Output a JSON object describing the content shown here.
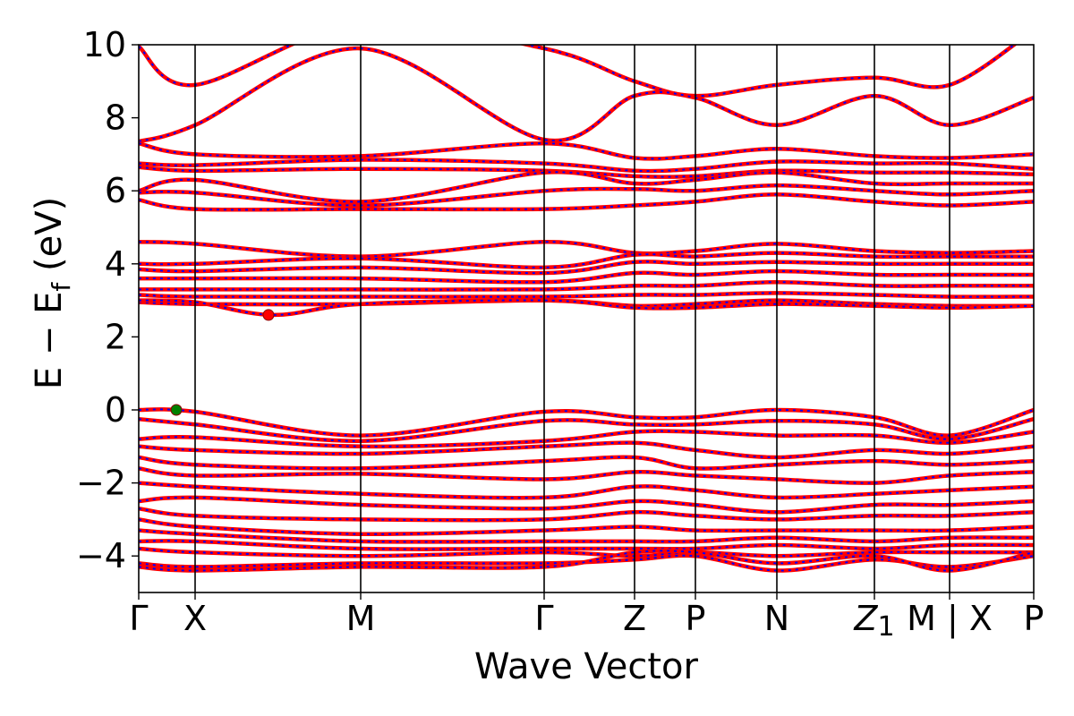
{
  "chart_data": {
    "type": "line",
    "xlabel": "Wave Vector",
    "ylabel": "E − E_f (eV)",
    "ylabel_parts": {
      "main": "E − E",
      "sub": "f",
      "unit": " (eV)"
    },
    "ylim": [
      -5,
      10
    ],
    "yticks": [
      -4,
      -2,
      0,
      2,
      4,
      6,
      8,
      10
    ],
    "ytick_labels": [
      "−4",
      "−2",
      "0",
      "2",
      "4",
      "6",
      "8",
      "10"
    ],
    "xlim": [
      0,
      1
    ],
    "high_symmetry_points": [
      {
        "label": "Γ",
        "x": 0.0
      },
      {
        "label": "X",
        "x": 0.063
      },
      {
        "label": "M",
        "x": 0.248
      },
      {
        "label": "Γ",
        "x": 0.453
      },
      {
        "label": "Z",
        "x": 0.554
      },
      {
        "label": "P",
        "x": 0.622
      },
      {
        "label": "N",
        "x": 0.713
      },
      {
        "label": "Z",
        "label_sub": "1",
        "x": 0.822
      },
      {
        "label": "M | X",
        "x": 0.906
      },
      {
        "label": "P",
        "x": 1.0
      }
    ],
    "series_colors": {
      "band": "#ff0000",
      "dash": "#0000ff"
    },
    "bands": [
      {
        "x": [
          0,
          0.063,
          0.248,
          0.453,
          0.554,
          0.622,
          0.713,
          0.822,
          0.906,
          1.0
        ],
        "y": [
          9.95,
          8.9,
          10.6,
          9.9,
          9.0,
          8.6,
          8.9,
          9.1,
          8.9,
          10.4
        ]
      },
      {
        "x": [
          0,
          0.063,
          0.248,
          0.453,
          0.554,
          0.622,
          0.713,
          0.822,
          0.906,
          1.0
        ],
        "y": [
          7.35,
          7.8,
          9.9,
          7.4,
          8.6,
          8.55,
          7.8,
          8.6,
          7.8,
          8.55
        ]
      },
      {
        "x": [
          0,
          0.063,
          0.248,
          0.453,
          0.554,
          0.622,
          0.713,
          0.822,
          0.906,
          1.0
        ],
        "y": [
          7.3,
          7.0,
          6.95,
          7.3,
          6.9,
          6.95,
          7.15,
          6.95,
          6.9,
          7.0
        ]
      },
      {
        "x": [
          0,
          0.063,
          0.248,
          0.453,
          0.554,
          0.622,
          0.713,
          0.822,
          0.906,
          1.0
        ],
        "y": [
          6.75,
          6.7,
          6.85,
          6.75,
          6.55,
          6.6,
          6.8,
          6.75,
          6.75,
          6.6
        ]
      },
      {
        "x": [
          0,
          0.063,
          0.248,
          0.453,
          0.554,
          0.622,
          0.713,
          0.822,
          0.906,
          1.0
        ],
        "y": [
          6.65,
          6.55,
          6.6,
          6.55,
          6.4,
          6.4,
          6.55,
          6.5,
          6.5,
          6.45
        ]
      },
      {
        "x": [
          0,
          0.063,
          0.248,
          0.453,
          0.554,
          0.622,
          0.713,
          0.822,
          0.906,
          1.0
        ],
        "y": [
          6.0,
          6.3,
          5.7,
          6.5,
          6.2,
          6.3,
          6.5,
          6.2,
          6.2,
          6.2
        ]
      },
      {
        "x": [
          0,
          0.063,
          0.248,
          0.453,
          0.554,
          0.622,
          0.713,
          0.822,
          0.906,
          1.0
        ],
        "y": [
          5.95,
          5.95,
          5.6,
          6.0,
          6.05,
          6.0,
          6.15,
          6.0,
          5.9,
          6.0
        ]
      },
      {
        "x": [
          0,
          0.063,
          0.248,
          0.453,
          0.554,
          0.622,
          0.713,
          0.822,
          0.906,
          1.0
        ],
        "y": [
          5.75,
          5.5,
          5.5,
          5.5,
          5.6,
          5.7,
          5.9,
          5.7,
          5.6,
          5.7
        ]
      },
      {
        "x": [
          0,
          0.063,
          0.248,
          0.453,
          0.554,
          0.622,
          0.713,
          0.822,
          0.906,
          1.0
        ],
        "y": [
          4.6,
          4.55,
          4.2,
          4.6,
          4.3,
          4.35,
          4.55,
          4.35,
          4.3,
          4.35
        ]
      },
      {
        "x": [
          0,
          0.063,
          0.248,
          0.453,
          0.554,
          0.622,
          0.713,
          0.822,
          0.906,
          1.0
        ],
        "y": [
          4.0,
          4.0,
          4.15,
          3.9,
          4.25,
          4.2,
          4.3,
          4.2,
          4.2,
          4.2
        ]
      },
      {
        "x": [
          0,
          0.063,
          0.248,
          0.453,
          0.554,
          0.622,
          0.713,
          0.822,
          0.906,
          1.0
        ],
        "y": [
          3.85,
          3.8,
          3.9,
          3.75,
          4.05,
          4.0,
          4.05,
          4.0,
          4.0,
          4.0
        ]
      },
      {
        "x": [
          0,
          0.063,
          0.248,
          0.453,
          0.554,
          0.622,
          0.713,
          0.822,
          0.906,
          1.0
        ],
        "y": [
          3.6,
          3.6,
          3.6,
          3.5,
          3.75,
          3.7,
          3.8,
          3.7,
          3.7,
          3.7
        ]
      },
      {
        "x": [
          0,
          0.063,
          0.248,
          0.453,
          0.554,
          0.622,
          0.713,
          0.822,
          0.906,
          1.0
        ],
        "y": [
          3.3,
          3.3,
          3.3,
          3.3,
          3.4,
          3.4,
          3.5,
          3.4,
          3.4,
          3.4
        ]
      },
      {
        "x": [
          0,
          0.063,
          0.248,
          0.453,
          0.554,
          0.622,
          0.713,
          0.822,
          0.906,
          1.0
        ],
        "y": [
          3.15,
          3.1,
          3.1,
          3.1,
          3.15,
          3.15,
          3.2,
          3.15,
          3.1,
          3.1
        ]
      },
      {
        "x": [
          0,
          0.063,
          0.248,
          0.453,
          0.554,
          0.622,
          0.713,
          0.822,
          0.906,
          1.0
        ],
        "y": [
          2.95,
          2.9,
          2.9,
          3.0,
          2.85,
          2.9,
          3.0,
          2.9,
          2.85,
          2.85
        ]
      },
      {
        "x": [
          0,
          0.063,
          0.15,
          0.248,
          0.453,
          0.554,
          0.622,
          0.713,
          0.822,
          0.906,
          1.0
        ],
        "y": [
          3.0,
          2.95,
          2.6,
          2.9,
          3.0,
          2.8,
          2.8,
          2.9,
          2.85,
          2.8,
          2.85
        ]
      },
      {
        "x": [
          0,
          0.063,
          0.248,
          0.453,
          0.554,
          0.622,
          0.713,
          0.822,
          0.906,
          1.0
        ],
        "y": [
          0.0,
          -0.05,
          -0.7,
          -0.05,
          -0.2,
          -0.2,
          0.0,
          -0.2,
          -0.7,
          0.0
        ]
      },
      {
        "x": [
          0,
          0.063,
          0.248,
          0.453,
          0.554,
          0.622,
          0.713,
          0.822,
          0.906,
          1.0
        ],
        "y": [
          -0.25,
          -0.4,
          -0.85,
          -0.3,
          -0.4,
          -0.4,
          -0.3,
          -0.4,
          -0.8,
          -0.25
        ]
      },
      {
        "x": [
          0,
          0.063,
          0.248,
          0.453,
          0.554,
          0.622,
          0.713,
          0.822,
          0.906,
          1.0
        ],
        "y": [
          -0.8,
          -0.75,
          -1.0,
          -0.85,
          -0.6,
          -0.6,
          -0.7,
          -0.7,
          -0.9,
          -0.6
        ]
      },
      {
        "x": [
          0,
          0.063,
          0.248,
          0.453,
          0.554,
          0.622,
          0.713,
          0.822,
          0.906,
          1.0
        ],
        "y": [
          -1.0,
          -1.1,
          -1.2,
          -1.0,
          -0.9,
          -1.1,
          -1.3,
          -1.1,
          -1.2,
          -1.0
        ]
      },
      {
        "x": [
          0,
          0.063,
          0.248,
          0.453,
          0.554,
          0.622,
          0.713,
          0.822,
          0.906,
          1.0
        ],
        "y": [
          -1.3,
          -1.5,
          -1.6,
          -1.4,
          -1.3,
          -1.6,
          -1.5,
          -1.4,
          -1.5,
          -1.4
        ]
      },
      {
        "x": [
          0,
          0.063,
          0.248,
          0.453,
          0.554,
          0.622,
          0.713,
          0.822,
          0.906,
          1.0
        ],
        "y": [
          -1.6,
          -1.8,
          -1.75,
          -1.9,
          -1.7,
          -1.8,
          -1.9,
          -2.0,
          -1.8,
          -1.7
        ]
      },
      {
        "x": [
          0,
          0.063,
          0.248,
          0.453,
          0.554,
          0.622,
          0.713,
          0.822,
          0.906,
          1.0
        ],
        "y": [
          -2.0,
          -2.1,
          -2.3,
          -2.4,
          -2.1,
          -2.2,
          -2.4,
          -2.3,
          -2.2,
          -2.1
        ]
      },
      {
        "x": [
          0,
          0.063,
          0.248,
          0.453,
          0.554,
          0.622,
          0.713,
          0.822,
          0.906,
          1.0
        ],
        "y": [
          -2.5,
          -2.4,
          -2.6,
          -2.7,
          -2.5,
          -2.6,
          -2.8,
          -2.6,
          -2.6,
          -2.5
        ]
      },
      {
        "x": [
          0,
          0.063,
          0.248,
          0.453,
          0.554,
          0.622,
          0.713,
          0.822,
          0.906,
          1.0
        ],
        "y": [
          -2.7,
          -2.9,
          -3.0,
          -3.0,
          -2.8,
          -2.9,
          -3.0,
          -2.9,
          -2.9,
          -2.8
        ]
      },
      {
        "x": [
          0,
          0.063,
          0.248,
          0.453,
          0.554,
          0.622,
          0.713,
          0.822,
          0.906,
          1.0
        ],
        "y": [
          -3.0,
          -3.2,
          -3.4,
          -3.3,
          -3.2,
          -3.3,
          -3.3,
          -3.3,
          -3.3,
          -3.2
        ]
      },
      {
        "x": [
          0,
          0.063,
          0.248,
          0.453,
          0.554,
          0.622,
          0.713,
          0.822,
          0.906,
          1.0
        ],
        "y": [
          -3.3,
          -3.4,
          -3.6,
          -3.6,
          -3.6,
          -3.6,
          -3.5,
          -3.6,
          -3.5,
          -3.5
        ]
      },
      {
        "x": [
          0,
          0.063,
          0.248,
          0.453,
          0.554,
          0.622,
          0.713,
          0.822,
          0.906,
          1.0
        ],
        "y": [
          -3.6,
          -3.6,
          -3.8,
          -3.8,
          -3.8,
          -3.8,
          -3.7,
          -3.8,
          -3.7,
          -3.7
        ]
      },
      {
        "x": [
          0,
          0.063,
          0.248,
          0.453,
          0.554,
          0.622,
          0.713,
          0.822,
          0.906,
          1.0
        ],
        "y": [
          -3.8,
          -3.9,
          -4.0,
          -3.9,
          -4.0,
          -3.9,
          -4.0,
          -3.9,
          -3.9,
          -3.9
        ]
      },
      {
        "x": [
          0,
          0.063,
          0.248,
          0.453,
          0.554,
          0.622,
          0.713,
          0.822,
          0.906,
          1.0
        ],
        "y": [
          -4.2,
          -4.3,
          -4.2,
          -4.2,
          -4.1,
          -4.0,
          -4.4,
          -4.1,
          -4.3,
          -4.0
        ]
      },
      {
        "x": [
          0,
          0.063,
          0.248,
          0.453,
          0.554,
          0.622,
          0.713,
          0.822,
          0.906,
          1.0
        ],
        "y": [
          -4.3,
          -4.4,
          -4.3,
          -4.3,
          -3.9,
          -3.9,
          -4.2,
          -4.0,
          -4.4,
          -3.9
        ]
      }
    ],
    "markers": [
      {
        "name": "CBM",
        "x": 0.145,
        "y": 2.6,
        "color": "#ff0000"
      },
      {
        "name": "VBM",
        "x": 0.042,
        "y": 0.0,
        "color": "#008000"
      }
    ],
    "grid": false,
    "legend": "none"
  }
}
